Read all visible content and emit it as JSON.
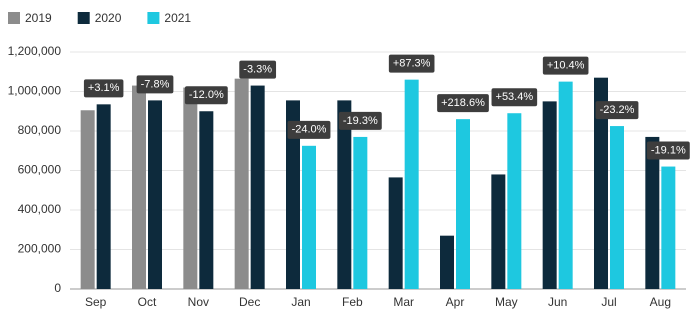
{
  "chart_data": {
    "type": "bar",
    "categories": [
      "Sep",
      "Oct",
      "Nov",
      "Dec",
      "Jan",
      "Feb",
      "Mar",
      "Apr",
      "May",
      "Jun",
      "Jul",
      "Aug"
    ],
    "series": [
      {
        "name": "2019",
        "color": "#8c8c8c",
        "values": [
          905000,
          1030000,
          1020000,
          1065000,
          null,
          null,
          null,
          null,
          null,
          null,
          null,
          null
        ]
      },
      {
        "name": "2020",
        "color": "#0d2a3c",
        "values": [
          935000,
          955000,
          900000,
          1030000,
          955000,
          955000,
          565000,
          270000,
          580000,
          950000,
          1070000,
          770000
        ]
      },
      {
        "name": "2021",
        "color": "#1ec8e0",
        "values": [
          null,
          null,
          null,
          null,
          725000,
          770000,
          1060000,
          860000,
          890000,
          1050000,
          825000,
          620000
        ]
      }
    ],
    "annotations": [
      "+3.1%",
      "-7.8%",
      "-12.0%",
      "-3.3%",
      "-24.0%",
      "-19.3%",
      "+87.3%",
      "+218.6%",
      "+53.4%",
      "+10.4%",
      "-23.2%",
      "-19.1%"
    ],
    "ylim": [
      0,
      1200000
    ],
    "yticks": [
      0,
      {
        "value": 200000,
        "label": "200,000"
      },
      {
        "value": 400000,
        "label": "400,000"
      },
      {
        "value": 600000,
        "label": "600,000"
      },
      {
        "value": 800000,
        "label": "800,000"
      },
      {
        "value": 1000000,
        "label": "1,000,000"
      },
      {
        "value": 1200000,
        "label": "1,200,000"
      }
    ],
    "grid": true,
    "legend": "top-left"
  }
}
